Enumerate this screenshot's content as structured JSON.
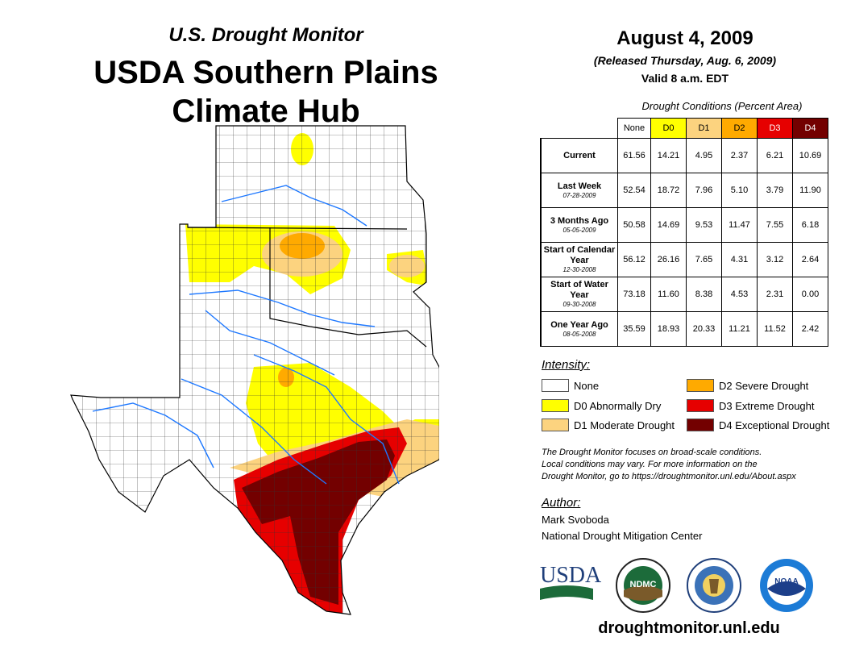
{
  "header": {
    "brand": "U.S. Drought Monitor",
    "region_title": "USDA Southern Plains Climate Hub"
  },
  "date": {
    "main": "August 4, 2009",
    "released": "(Released Thursday, Aug. 6, 2009)",
    "valid": "Valid 8 a.m. EDT"
  },
  "table": {
    "caption": "Drought Conditions (Percent Area)",
    "columns": [
      {
        "label": "None",
        "color": "#ffffff"
      },
      {
        "label": "D0",
        "color": "#ffff00"
      },
      {
        "label": "D1",
        "color": "#fcd37f"
      },
      {
        "label": "D2",
        "color": "#ffaa00"
      },
      {
        "label": "D3",
        "color": "#e60000"
      },
      {
        "label": "D4",
        "color": "#730000"
      }
    ],
    "rows": [
      {
        "label": "Current",
        "date": "",
        "values": [
          "61.56",
          "14.21",
          "4.95",
          "2.37",
          "6.21",
          "10.69"
        ]
      },
      {
        "label": "Last Week",
        "date": "07-28-2009",
        "values": [
          "52.54",
          "18.72",
          "7.96",
          "5.10",
          "3.79",
          "11.90"
        ]
      },
      {
        "label": "3 Months Ago",
        "date": "05-05-2009",
        "values": [
          "50.58",
          "14.69",
          "9.53",
          "11.47",
          "7.55",
          "6.18"
        ]
      },
      {
        "label": "Start of Calendar Year",
        "date": "12-30-2008",
        "values": [
          "56.12",
          "26.16",
          "7.65",
          "4.31",
          "3.12",
          "2.64"
        ]
      },
      {
        "label": "Start of Water Year",
        "date": "09-30-2008",
        "values": [
          "73.18",
          "11.60",
          "8.38",
          "4.53",
          "2.31",
          "0.00"
        ]
      },
      {
        "label": "One Year Ago",
        "date": "08-05-2008",
        "values": [
          "35.59",
          "18.93",
          "20.33",
          "11.21",
          "11.52",
          "2.42"
        ]
      }
    ]
  },
  "legend": {
    "title": "Intensity:",
    "items": [
      {
        "label": "None",
        "color": "#ffffff"
      },
      {
        "label": "D0 Abnormally Dry",
        "color": "#ffff00"
      },
      {
        "label": "D1 Moderate Drought",
        "color": "#fcd37f"
      },
      {
        "label": "D2 Severe Drought",
        "color": "#ffaa00"
      },
      {
        "label": "D3 Extreme Drought",
        "color": "#e60000"
      },
      {
        "label": "D4 Exceptional Drought",
        "color": "#730000"
      }
    ]
  },
  "note": {
    "line1": "The Drought Monitor focuses on broad-scale conditions.",
    "line2": "Local conditions may vary. For more information on the",
    "line3": "Drought Monitor, go to https://droughtmonitor.unl.edu/About.aspx"
  },
  "author": {
    "title": "Author:",
    "name": "Mark Svoboda",
    "org": "National Drought Mitigation Center"
  },
  "logos": {
    "usda": "USDA",
    "ndmc": "NDMC",
    "noaa": "NOAA"
  },
  "footer": {
    "website": "droughtmonitor.unl.edu"
  }
}
